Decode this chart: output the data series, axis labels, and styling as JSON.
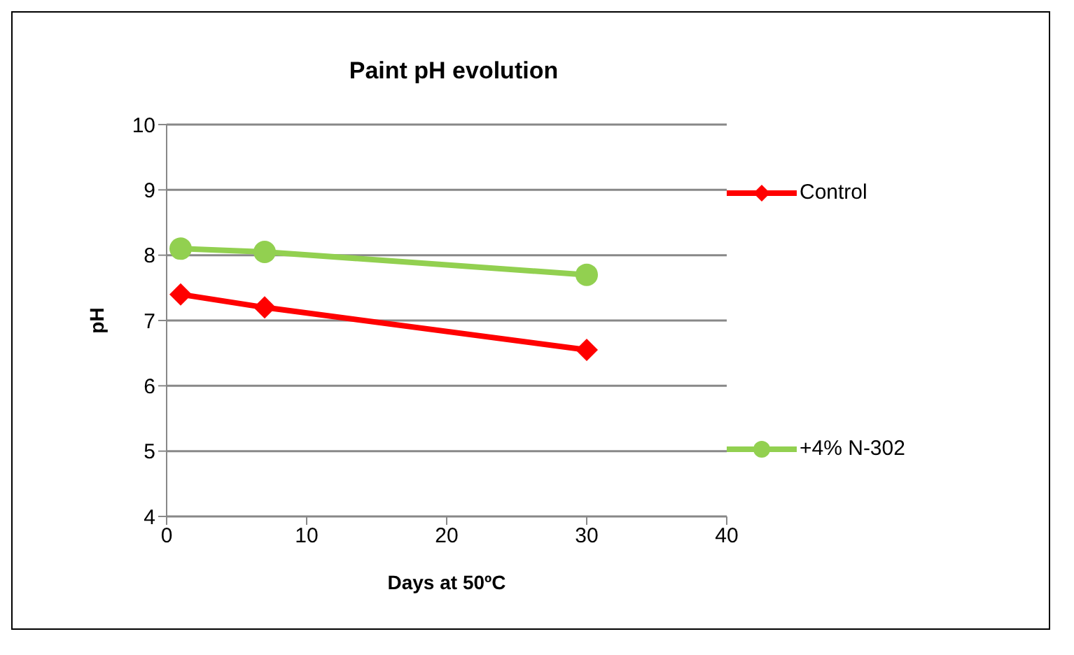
{
  "chart_data": {
    "type": "line",
    "title": "Paint pH evolution",
    "xlabel": "Days at 50ºC",
    "ylabel": "pH",
    "x": [
      1,
      7,
      30
    ],
    "series": [
      {
        "name": "Control",
        "color": "#ff0000",
        "marker": "diamond",
        "values": [
          7.4,
          7.2,
          6.55
        ]
      },
      {
        "name": "+4% N-302",
        "color": "#92d050",
        "marker": "circle",
        "values": [
          8.1,
          8.05,
          7.7
        ]
      }
    ],
    "xlim": [
      0,
      40
    ],
    "xticks": [
      0,
      10,
      20,
      30,
      40
    ],
    "ylim": [
      4,
      10
    ],
    "yticks": [
      4,
      5,
      6,
      7,
      8,
      9,
      10
    ],
    "grid": "y",
    "legend": "right"
  }
}
